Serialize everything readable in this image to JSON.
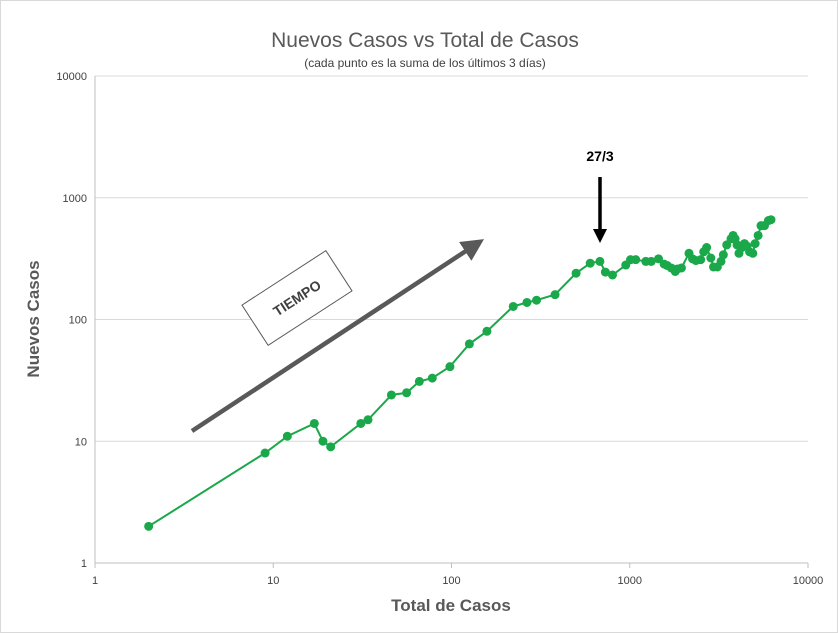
{
  "chart_data": {
    "type": "line",
    "title": "Nuevos Casos vs Total de Casos",
    "subtitle": "(cada punto es la suma de los últimos 3 días)",
    "xlabel": "Total de Casos",
    "ylabel": "Nuevos Casos",
    "x_scale": "log",
    "y_scale": "log",
    "xlim": [
      1,
      10000
    ],
    "ylim": [
      1,
      10000
    ],
    "x_ticks": [
      "1",
      "10",
      "100",
      "1000",
      "10000"
    ],
    "y_ticks": [
      "1",
      "10",
      "100",
      "1000",
      "10000"
    ],
    "grid": "horizontal",
    "legend": "none",
    "series": [
      {
        "color": "#1aa84a",
        "points": [
          [
            2,
            2
          ],
          [
            9,
            8
          ],
          [
            12,
            11
          ],
          [
            17,
            14
          ],
          [
            19,
            10
          ],
          [
            21,
            9
          ],
          [
            31,
            14
          ],
          [
            34,
            15
          ],
          [
            46,
            24
          ],
          [
            56,
            25
          ],
          [
            66,
            31
          ],
          [
            78,
            33
          ],
          [
            98,
            41
          ],
          [
            126,
            63
          ],
          [
            158,
            80
          ],
          [
            222,
            128
          ],
          [
            265,
            138
          ],
          [
            300,
            144
          ],
          [
            381,
            160
          ],
          [
            500,
            240
          ],
          [
            600,
            290
          ],
          [
            680,
            300
          ],
          [
            730,
            245
          ],
          [
            800,
            232
          ],
          [
            950,
            280
          ],
          [
            1010,
            310
          ],
          [
            1080,
            310
          ],
          [
            1230,
            300
          ],
          [
            1320,
            300
          ],
          [
            1450,
            315
          ],
          [
            1560,
            285
          ],
          [
            1620,
            278
          ],
          [
            1710,
            265
          ],
          [
            1800,
            248
          ],
          [
            1850,
            260
          ],
          [
            1950,
            265
          ],
          [
            2150,
            350
          ],
          [
            2250,
            315
          ],
          [
            2350,
            305
          ],
          [
            2500,
            310
          ],
          [
            2600,
            360
          ],
          [
            2700,
            390
          ],
          [
            2850,
            320
          ],
          [
            2950,
            270
          ],
          [
            3100,
            270
          ],
          [
            3250,
            300
          ],
          [
            3350,
            340
          ],
          [
            3500,
            410
          ],
          [
            3700,
            460
          ],
          [
            3800,
            490
          ],
          [
            3900,
            460
          ],
          [
            4000,
            410
          ],
          [
            4100,
            350
          ],
          [
            4250,
            390
          ],
          [
            4400,
            420
          ],
          [
            4550,
            400
          ],
          [
            4700,
            360
          ],
          [
            4900,
            350
          ],
          [
            5050,
            420
          ],
          [
            5250,
            490
          ],
          [
            5450,
            590
          ],
          [
            5700,
            590
          ],
          [
            6000,
            650
          ],
          [
            6200,
            660
          ]
        ]
      }
    ],
    "annotations": [
      {
        "text": "27/3",
        "type": "arrow",
        "at_x": 680
      },
      {
        "text": "TIEMPO",
        "type": "trend-arrow"
      }
    ]
  }
}
